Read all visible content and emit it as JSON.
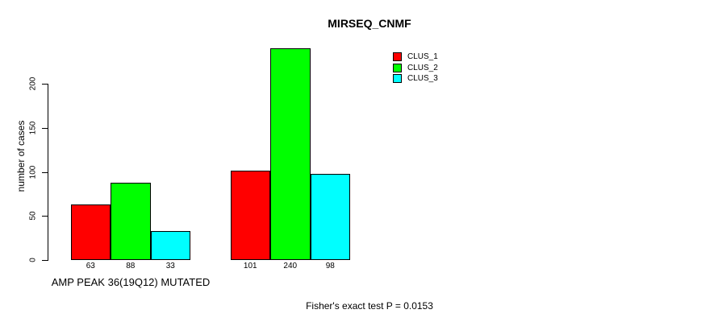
{
  "chart_data": {
    "type": "bar",
    "title": "MIRSEQ_CNMF",
    "xlabel": "",
    "ylabel": "number of cases",
    "categories": [
      "AMP PEAK 36(19Q12) MUTATED",
      ""
    ],
    "series": [
      {
        "name": "CLUS_1",
        "color": "#ff0000",
        "values": [
          63,
          101
        ]
      },
      {
        "name": "CLUS_2",
        "color": "#00ff00",
        "values": [
          88,
          240
        ]
      },
      {
        "name": "CLUS_3",
        "color": "#00ffff",
        "values": [
          33,
          98
        ]
      }
    ],
    "bar_value_labels": [
      [
        63,
        88,
        33
      ],
      [
        101,
        240,
        98
      ]
    ],
    "yticks": [
      0,
      50,
      100,
      150,
      200
    ],
    "ylim": [
      0,
      240
    ],
    "grid": false,
    "legend_position": "top-right",
    "annotation": "Fisher's exact test P = 0.0153",
    "colors": {
      "background": "#ffffff",
      "axis": "#000000",
      "text": "#000000"
    }
  }
}
